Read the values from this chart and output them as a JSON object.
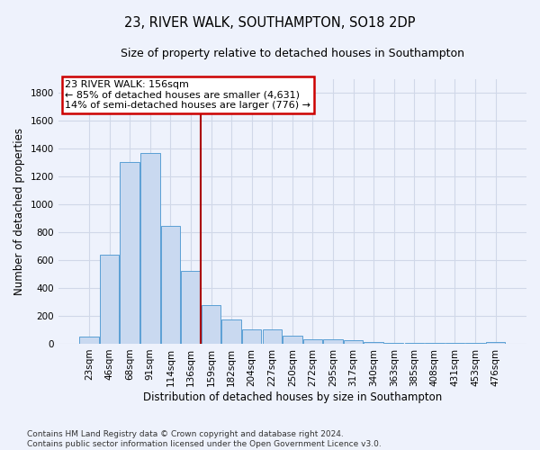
{
  "title": "23, RIVER WALK, SOUTHAMPTON, SO18 2DP",
  "subtitle": "Size of property relative to detached houses in Southampton",
  "xlabel": "Distribution of detached houses by size in Southampton",
  "ylabel": "Number of detached properties",
  "categories": [
    "23sqm",
    "46sqm",
    "68sqm",
    "91sqm",
    "114sqm",
    "136sqm",
    "159sqm",
    "182sqm",
    "204sqm",
    "227sqm",
    "250sqm",
    "272sqm",
    "295sqm",
    "317sqm",
    "340sqm",
    "363sqm",
    "385sqm",
    "408sqm",
    "431sqm",
    "453sqm",
    "476sqm"
  ],
  "values": [
    50,
    640,
    1305,
    1370,
    848,
    525,
    275,
    175,
    105,
    105,
    60,
    35,
    35,
    28,
    15,
    5,
    5,
    5,
    5,
    5,
    15
  ],
  "bar_color": "#c9d9f0",
  "bar_edge_color": "#5a9fd4",
  "vline_color": "#aa0000",
  "annotation_text": "23 RIVER WALK: 156sqm\n← 85% of detached houses are smaller (4,631)\n14% of semi-detached houses are larger (776) →",
  "annotation_box_color": "#ffffff",
  "annotation_border_color": "#cc0000",
  "ylim": [
    0,
    1900
  ],
  "yticks": [
    0,
    200,
    400,
    600,
    800,
    1000,
    1200,
    1400,
    1600,
    1800
  ],
  "background_color": "#eef2fc",
  "grid_color": "#d0d8e8",
  "footer": "Contains HM Land Registry data © Crown copyright and database right 2024.\nContains public sector information licensed under the Open Government Licence v3.0.",
  "title_fontsize": 10.5,
  "subtitle_fontsize": 9,
  "label_fontsize": 8.5,
  "tick_fontsize": 7.5,
  "footer_fontsize": 6.5
}
